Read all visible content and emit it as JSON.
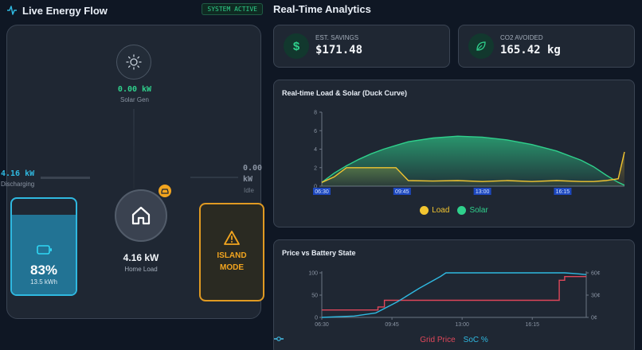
{
  "left": {
    "title": "Live Energy Flow",
    "status": "SYSTEM ACTIVE",
    "solar": {
      "value": "0.00 kW",
      "label": "Solar Gen"
    },
    "battery": {
      "flow_value": "4.16 kW",
      "flow_state": "Discharging",
      "percent": "83%",
      "energy": "13.5 kWh",
      "level": 0.83
    },
    "grid": {
      "value": "0.00 kW",
      "state": "Idle"
    },
    "home": {
      "value": "4.16 kW",
      "label": "Home Load"
    },
    "island": {
      "label": "ISLAND MODE"
    }
  },
  "right": {
    "title": "Real-Time Analytics",
    "savings": {
      "label": "EST. SAVINGS",
      "value": "$171.48",
      "icon": "dollar-icon"
    },
    "co2": {
      "label": "CO2 AVOIDED",
      "value": "165.42 kg",
      "icon": "leaf-icon"
    }
  },
  "colors": {
    "accent_green": "#2fd08c",
    "accent_blue": "#2fb8e0",
    "accent_orange": "#f2a51f",
    "grid_price": "#e0475a"
  },
  "chart_data": [
    {
      "type": "area",
      "title": "Real-time Load & Solar (Duck Curve)",
      "x_ticks": [
        "06:30",
        "09:45",
        "13:00",
        "16:15"
      ],
      "y_ticks": [
        "0",
        "2",
        "4",
        "6",
        "8"
      ],
      "ylim": [
        0,
        8
      ],
      "x_hours": [
        6.5,
        7.0,
        7.5,
        8.0,
        8.5,
        9.0,
        9.5,
        10.0,
        11.0,
        12.0,
        13.0,
        14.0,
        15.0,
        16.0,
        17.0,
        17.5,
        18.0,
        18.5,
        18.75
      ],
      "series": [
        {
          "name": "Load",
          "color": "#f2c530",
          "values": [
            0.4,
            1.0,
            2.0,
            2.0,
            2.0,
            2.0,
            2.0,
            0.6,
            0.55,
            0.6,
            0.5,
            0.6,
            0.5,
            0.6,
            0.5,
            0.5,
            0.6,
            0.8,
            3.7
          ]
        },
        {
          "name": "Solar",
          "color": "#2fd08c",
          "values": [
            0.4,
            1.4,
            2.2,
            2.9,
            3.5,
            4.0,
            4.4,
            4.8,
            5.2,
            5.4,
            5.3,
            5.0,
            4.5,
            3.8,
            2.8,
            2.1,
            1.2,
            0.4,
            0.1
          ]
        }
      ]
    },
    {
      "type": "line",
      "title": "Price vs Battery State",
      "x_ticks": [
        "06:30",
        "09:45",
        "13:00",
        "16:15"
      ],
      "y_ticks_left": [
        "0",
        "50",
        "100"
      ],
      "y_ticks_right": [
        "0¢",
        "30¢",
        "60¢"
      ],
      "ylim_left": [
        0,
        100
      ],
      "ylim_right": [
        0,
        60
      ],
      "series": [
        {
          "name": "Grid Price",
          "color": "#e0475a",
          "axis": "right",
          "x_hours": [
            6.5,
            9.1,
            9.1,
            9.4,
            9.4,
            17.5,
            17.5,
            17.75,
            17.75,
            18.75
          ],
          "values": [
            10,
            10,
            14,
            14,
            23,
            23,
            50,
            50,
            55,
            55
          ]
        },
        {
          "name": "SoC %",
          "color": "#2fb8e0",
          "axis": "left",
          "x_hours": [
            6.5,
            8.0,
            9.0,
            10.0,
            11.0,
            12.0,
            12.25,
            17.75,
            18.3,
            18.75
          ],
          "values": [
            0,
            3,
            10,
            35,
            65,
            92,
            100,
            100,
            98,
            96
          ]
        }
      ]
    }
  ]
}
